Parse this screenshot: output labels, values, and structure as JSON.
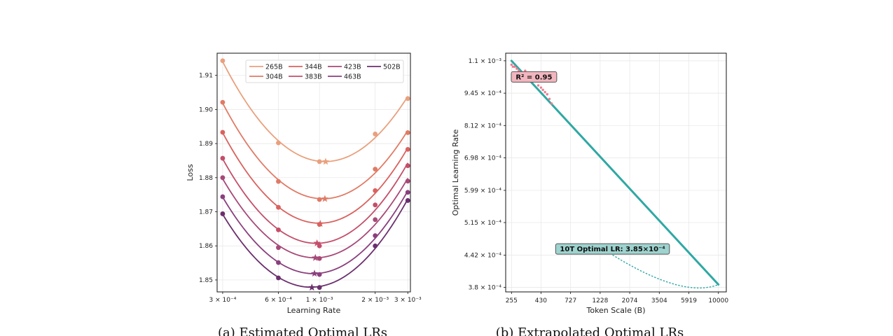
{
  "chart_data": [
    {
      "type": "line",
      "caption": "(a) Estimated Optimal LRs",
      "xlabel": "Learning Rate",
      "ylabel": "Loss",
      "x_scale": "log",
      "xlim": [
        0.00028,
        0.0031
      ],
      "ylim": [
        1.8465,
        1.9165
      ],
      "x_ticks": [
        {
          "value": 0.0003,
          "label": "3 × 10⁻⁴"
        },
        {
          "value": 0.0006,
          "label": "6 × 10⁻⁴"
        },
        {
          "value": 0.001,
          "label": "1 × 10⁻³"
        },
        {
          "value": 0.002,
          "label": "2 × 10⁻³"
        },
        {
          "value": 0.003,
          "label": "3 × 10⁻³"
        }
      ],
      "y_ticks": [
        {
          "value": 1.85,
          "label": "1.85"
        },
        {
          "value": 1.86,
          "label": "1.86"
        },
        {
          "value": 1.87,
          "label": "1.87"
        },
        {
          "value": 1.88,
          "label": "1.88"
        },
        {
          "value": 1.89,
          "label": "1.89"
        },
        {
          "value": 1.9,
          "label": "1.90"
        },
        {
          "value": 1.91,
          "label": "1.91"
        }
      ],
      "grid": true,
      "legend_position": "top-right",
      "x": [
        0.0003,
        0.0006,
        0.001,
        0.002,
        0.003
      ],
      "series": [
        {
          "name": "265B",
          "color": "#e9a07d",
          "values": [
            1.9143,
            1.8902,
            1.8847,
            1.8928,
            1.9032
          ],
          "optimum": {
            "x": 0.00108,
            "y": 1.8847
          }
        },
        {
          "name": "304B",
          "color": "#e07b66",
          "values": [
            1.9021,
            1.8789,
            1.8736,
            1.8825,
            1.8932
          ],
          "optimum": {
            "x": 0.00107,
            "y": 1.8738
          }
        },
        {
          "name": "344B",
          "color": "#d9625e",
          "values": [
            1.8933,
            1.8713,
            1.8663,
            1.8762,
            1.8883
          ],
          "optimum": {
            "x": 0.00101,
            "y": 1.8665
          }
        },
        {
          "name": "383B",
          "color": "#c44e6a",
          "values": [
            1.8857,
            1.8647,
            1.86,
            1.872,
            1.8835
          ],
          "optimum": {
            "x": 0.00097,
            "y": 1.8608
          }
        },
        {
          "name": "423B",
          "color": "#a74878",
          "values": [
            1.88,
            1.8595,
            1.8563,
            1.8677,
            1.879
          ],
          "optimum": {
            "x": 0.00095,
            "y": 1.8565
          }
        },
        {
          "name": "463B",
          "color": "#8a3f7e",
          "values": [
            1.8744,
            1.8551,
            1.8516,
            1.863,
            1.8757
          ],
          "optimum": {
            "x": 0.00094,
            "y": 1.8519
          }
        },
        {
          "name": "502B",
          "color": "#6b2f6e",
          "values": [
            1.8694,
            1.8506,
            1.8478,
            1.86,
            1.8733
          ],
          "optimum": {
            "x": 0.00091,
            "y": 1.8478
          }
        }
      ]
    },
    {
      "type": "line",
      "caption": "(b) Extrapolated Optimal LRs",
      "xlabel": "Token Scale (B)",
      "ylabel": "Optimal Learning Rate",
      "x_scale": "log",
      "y_scale": "log",
      "xlim": [
        230,
        11500
      ],
      "ylim": [
        0.000372,
        0.00114
      ],
      "x_ticks": [
        {
          "value": 255,
          "label": "255"
        },
        {
          "value": 430,
          "label": "430"
        },
        {
          "value": 727,
          "label": "727"
        },
        {
          "value": 1228,
          "label": "1228"
        },
        {
          "value": 2074,
          "label": "2074"
        },
        {
          "value": 3504,
          "label": "3504"
        },
        {
          "value": 5919,
          "label": "5919"
        },
        {
          "value": 10000,
          "label": "10000"
        }
      ],
      "y_ticks": [
        {
          "value": 0.00038,
          "label": "3.8 × 10⁻⁴"
        },
        {
          "value": 0.000442,
          "label": "4.42 × 10⁻⁴"
        },
        {
          "value": 0.000515,
          "label": "5.15 × 10⁻⁴"
        },
        {
          "value": 0.000599,
          "label": "5.99 × 10⁻⁴"
        },
        {
          "value": 0.000698,
          "label": "6.98 × 10⁻⁴"
        },
        {
          "value": 0.000812,
          "label": "8.12 × 10⁻⁴"
        },
        {
          "value": 0.000945,
          "label": "9.45 × 10⁻⁴"
        },
        {
          "value": 0.0011,
          "label": "1.1 × 10⁻³"
        }
      ],
      "grid": true,
      "fit_line": {
        "color": "#2fa8a4",
        "x": [
          255,
          10000
        ],
        "y": [
          0.0011,
          0.000385
        ]
      },
      "scatter": {
        "color": "#ef7c8e",
        "x": [
          255,
          262,
          270,
          280,
          290,
          300,
          312,
          325,
          340,
          356,
          372,
          390,
          410,
          430,
          445,
          462,
          480,
          500,
          520
        ],
        "y": [
          0.00108,
          0.00107,
          0.00107,
          0.00106,
          0.00105,
          0.00104,
          0.00104,
          0.00105,
          0.00103,
          0.00102,
          0.00101,
          0.001,
          0.00098,
          0.00097,
          0.00096,
          0.00095,
          0.00094,
          0.00092,
          0.0009
        ]
      },
      "annotations": [
        {
          "text": "R² = 0.95",
          "x": 380,
          "y": 0.00102,
          "bg": "#f2b6bf",
          "border": "#555555"
        },
        {
          "text": "10T Optimal LR: 3.85×10⁻⁴",
          "x": 1530,
          "y": 0.000455,
          "bg": "#9ed3cf",
          "border": "#555555",
          "arrow_to": {
            "x": 10000,
            "y": 0.000385
          }
        }
      ]
    }
  ]
}
